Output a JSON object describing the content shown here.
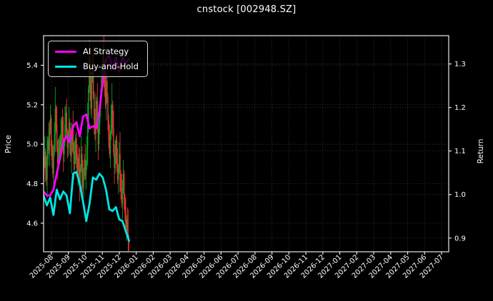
{
  "title": "cnstock [002948.SZ]",
  "axes": {
    "left": {
      "label": "Price",
      "ticks": [
        "5.4",
        "5.2",
        "5.0",
        "4.8",
        "4.6"
      ]
    },
    "right": {
      "label": "Return",
      "ticks": [
        "1.3",
        "1.2",
        "1.1",
        "1.0",
        "0.9"
      ]
    },
    "x": {
      "ticks": [
        "2025-08",
        "2025-09",
        "2025-10",
        "2025-11",
        "2025-12",
        "2026-01",
        "2026-02",
        "2026-03",
        "2026-04",
        "2026-05",
        "2026-06",
        "2026-07",
        "2026-08",
        "2026-09",
        "2026-10",
        "2026-11",
        "2026-12",
        "2027-01",
        "2027-02",
        "2027-03",
        "2027-04",
        "2027-05",
        "2027-06",
        "2027-07"
      ]
    }
  },
  "legend": {
    "items": [
      {
        "label": "AI Strategy",
        "color": "#ff00ff"
      },
      {
        "label": "Buy-and-Hold",
        "color": "#00e5e5"
      }
    ]
  },
  "chart_data": {
    "type": "candlestick+line",
    "title": "cnstock [002948.SZ]",
    "grid": true,
    "grid_color": "#3d3d3d",
    "background": "#000000",
    "colors": {
      "candle_up": "#00a321",
      "candle_down": "#e93434",
      "ai_strategy": "#ff00ff",
      "buy_and_hold": "#00e5e5"
    },
    "price_axis": {
      "label": "Price",
      "lim": [
        4.455,
        5.55
      ],
      "tick_values": [
        5.4,
        5.2,
        5.0,
        4.8,
        4.6
      ]
    },
    "return_axis": {
      "label": "Return",
      "lim": [
        0.8685,
        1.365
      ],
      "tick_values": [
        1.3,
        1.2,
        1.1,
        1.0,
        0.9
      ]
    },
    "x_axis": {
      "first_tick": "2025-08",
      "last_tick": "2027-07",
      "tick_count": 24,
      "note_data_extent": "price/return data occupies only 2025-07..2026-01 portion of axis"
    },
    "candles": {
      "first_open": 4.85,
      "closes": [
        4.9,
        4.96,
        4.88,
        4.82,
        4.93,
        5.02,
        4.97,
        5.08,
        5.13,
        4.99,
        4.92,
        4.85,
        4.97,
        5.05,
        5.18,
        5.1,
        4.98,
        4.9,
        4.96,
        5.02,
        4.95,
        5.05,
        5.12,
        5.03,
        4.95,
        5.01,
        5.1,
        5.16,
        5.06,
        4.98,
        5.04,
        5.11,
        5.02,
        4.94,
        5.0,
        5.08,
        4.97,
        4.9,
        4.95,
        5.03,
        4.92,
        4.86,
        4.93,
        4.87,
        4.8,
        4.88,
        4.95,
        4.85,
        4.78,
        4.86,
        4.92,
        4.84,
        4.9,
        4.98,
        5.1,
        5.28,
        5.44,
        5.3,
        5.18,
        5.35,
        5.42,
        5.25,
        5.12,
        5.05,
        5.15,
        5.22,
        5.08,
        5.0,
        5.1,
        5.18,
        5.25,
        5.33,
        5.4,
        5.45,
        5.38,
        5.28,
        5.2,
        5.32,
        5.24,
        5.12,
        5.02,
        4.95,
        5.05,
        5.14,
        5.2,
        5.08,
        4.96,
        4.88,
        4.95,
        5.02,
        4.9,
        4.82,
        4.88,
        4.95,
        4.85,
        4.76,
        4.7,
        4.78,
        4.85,
        4.72,
        4.65,
        4.58,
        4.62,
        4.56,
        4.52,
        4.5
      ],
      "wick_up": [
        0.03,
        0.08,
        0.02,
        0.06,
        0.11,
        0.02,
        0.09,
        0.04,
        0.07,
        0.02
      ],
      "wick_down": [
        0.04,
        0.02,
        0.07,
        0.03,
        0.09,
        0.04,
        0.02,
        0.08,
        0.03,
        0.05
      ]
    },
    "series": [
      {
        "name": "AI Strategy",
        "axis": "return",
        "color": "#ff00ff",
        "values": [
          1.007,
          0.998,
          0.998,
          1.011,
          1.048,
          1.084,
          1.12,
          1.134,
          1.12,
          1.157,
          1.166,
          1.134,
          1.179,
          1.184,
          1.152,
          1.157,
          1.152,
          1.193,
          1.261,
          1.311,
          1.32,
          1.288,
          1.315,
          1.283,
          1.315,
          1.302,
          1.311
        ]
      },
      {
        "name": "Buy-and-Hold",
        "axis": "return",
        "color": "#00e5e5",
        "values": [
          0.998,
          0.975,
          0.993,
          0.953,
          1.011,
          0.989,
          1.007,
          0.998,
          0.957,
          1.048,
          1.052,
          1.025,
          0.984,
          0.939,
          0.98,
          1.039,
          1.034,
          1.048,
          1.039,
          1.011,
          0.966,
          0.962,
          0.971,
          0.943,
          0.939,
          0.916,
          0.894
        ]
      }
    ]
  }
}
